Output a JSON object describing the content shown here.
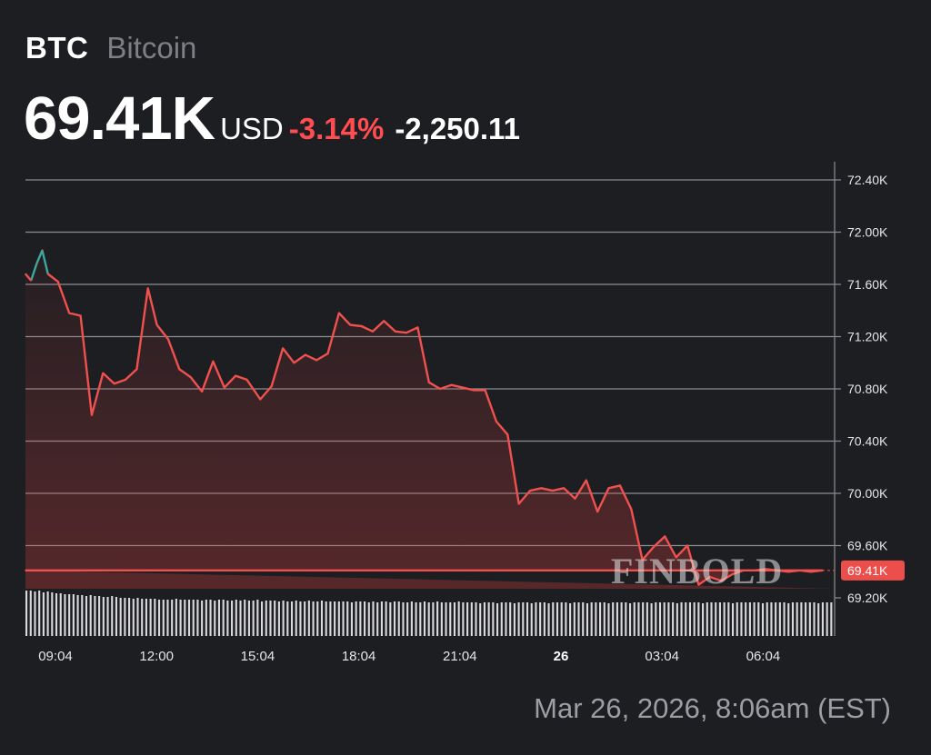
{
  "header": {
    "ticker": "BTC",
    "name": "Bitcoin",
    "price": "69.41K",
    "currency": "USD",
    "change_pct": "-3.14%",
    "change_abs": "-2,250.11"
  },
  "timestamp": "Mar 26, 2026, 8:06am (EST)",
  "watermark": "FINBOLD",
  "colors": {
    "background": "#1d1e22",
    "line_down": "#f0514f",
    "line_up": "#3aa89b",
    "grid": "#8c8e94",
    "current_label_bg": "#ec4e4c"
  },
  "chart_data": {
    "type": "line",
    "title": "",
    "xlabel": "",
    "ylabel": "",
    "x_tick_labels": [
      "09:04",
      "12:00",
      "15:04",
      "18:04",
      "21:04",
      "26",
      "03:04",
      "06:04"
    ],
    "y_tick_labels": [
      "72.40K",
      "72.00K",
      "71.60K",
      "71.20K",
      "70.80K",
      "70.40K",
      "70.00K",
      "69.60K",
      "69.20K"
    ],
    "ylim": [
      69200,
      72400
    ],
    "grid": "horizontal",
    "current_value": 69410,
    "current_label": "69.41K",
    "series": [
      {
        "x": [
          "08:06",
          "08:16",
          "08:26",
          "08:36",
          "08:46",
          "09:04",
          "09:24",
          "09:44",
          "10:04",
          "10:24",
          "10:44",
          "11:04",
          "11:24",
          "11:44",
          "12:00",
          "12:20",
          "12:40",
          "13:00",
          "13:20",
          "13:40",
          "14:00",
          "14:20",
          "14:40",
          "15:04",
          "15:24",
          "15:44",
          "16:04",
          "16:24",
          "16:44",
          "17:04",
          "17:24",
          "17:44",
          "18:04",
          "18:24",
          "18:44",
          "19:04",
          "19:24",
          "19:44",
          "20:04",
          "20:24",
          "20:44",
          "21:04",
          "21:24",
          "21:44",
          "22:04",
          "22:24",
          "22:44",
          "23:04",
          "23:24",
          "23:44",
          "00:04",
          "00:24",
          "00:44",
          "01:04",
          "01:24",
          "01:44",
          "02:04",
          "02:24",
          "02:44",
          "03:04",
          "03:24",
          "03:44",
          "04:04",
          "04:24",
          "04:44",
          "05:04",
          "05:24",
          "05:44",
          "06:04",
          "06:24",
          "06:44",
          "07:04",
          "07:24",
          "07:44",
          "08:06"
        ],
        "y": [
          71680,
          71630,
          71760,
          71860,
          71680,
          71620,
          71380,
          71360,
          70600,
          70920,
          70840,
          70870,
          70950,
          71570,
          71290,
          71180,
          70950,
          70890,
          70780,
          71010,
          70810,
          70900,
          70870,
          70720,
          70820,
          71110,
          71000,
          71060,
          71020,
          71070,
          71380,
          71290,
          71280,
          71240,
          71320,
          71240,
          71230,
          71270,
          70850,
          70800,
          70830,
          70810,
          70790,
          70790,
          70550,
          70450,
          69920,
          70020,
          70040,
          70020,
          70040,
          69960,
          70100,
          69860,
          70040,
          70060,
          69880,
          69490,
          69590,
          69670,
          69510,
          69600,
          69300,
          69360,
          69330,
          69380,
          69410,
          69410,
          69420,
          69410,
          69400,
          69410,
          69400,
          69410,
          69410
        ]
      }
    ],
    "volume": [
      50,
      50,
      49,
      50,
      48,
      49,
      48,
      47,
      47,
      46,
      46,
      46,
      45,
      45,
      44,
      45,
      44,
      44,
      43,
      43,
      44,
      43,
      42,
      42,
      42,
      41,
      42,
      41,
      41,
      41,
      41,
      40,
      40,
      40,
      40,
      41,
      40,
      40,
      40,
      40,
      40,
      39,
      40,
      40,
      39,
      40,
      40,
      39,
      39,
      40,
      39,
      40,
      39,
      39,
      40,
      38,
      39,
      39,
      39,
      38,
      39,
      38,
      38,
      39,
      38,
      38,
      39,
      38,
      38,
      39,
      38,
      38,
      38,
      38,
      38,
      38,
      37,
      38,
      38,
      38,
      37,
      38,
      37,
      38,
      38,
      37,
      38,
      38,
      37,
      37,
      38,
      37,
      37,
      38,
      37,
      37,
      38,
      37,
      37,
      37,
      37,
      38,
      37,
      37,
      37,
      37,
      36,
      37,
      37,
      37,
      36,
      37,
      37,
      37,
      36,
      37,
      37,
      37,
      36,
      37,
      37,
      37,
      36,
      37,
      37,
      37,
      37,
      36,
      37,
      37,
      37,
      36,
      37,
      37,
      37,
      37,
      36,
      37,
      37,
      37,
      37,
      36,
      37,
      37,
      37,
      37,
      36,
      37,
      37,
      37,
      37,
      37,
      36,
      37,
      37,
      37,
      37,
      37,
      36,
      37,
      37,
      37,
      37,
      37,
      37,
      36,
      37,
      37,
      37,
      37,
      37,
      37,
      36,
      37,
      37,
      37,
      37,
      37,
      36,
      37,
      37,
      37,
      37,
      37,
      37,
      36,
      37,
      37,
      37
    ]
  }
}
